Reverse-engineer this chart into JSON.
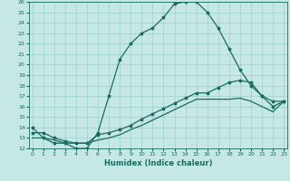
{
  "xlabel": "Humidex (Indice chaleur)",
  "xlim": [
    0,
    23
  ],
  "ylim": [
    12,
    26
  ],
  "yticks": [
    12,
    13,
    14,
    15,
    16,
    17,
    18,
    19,
    20,
    21,
    22,
    23,
    24,
    25,
    26
  ],
  "xticks": [
    0,
    1,
    2,
    3,
    4,
    5,
    6,
    7,
    8,
    9,
    10,
    11,
    12,
    13,
    14,
    15,
    16,
    17,
    18,
    19,
    20,
    21,
    22,
    23
  ],
  "bg_color": "#c5e8e5",
  "grid_color": "#9bcfcc",
  "line_color": "#1a6b60",
  "line1_y": [
    14.0,
    13.0,
    12.5,
    12.5,
    12.0,
    12.0,
    13.5,
    17.0,
    20.5,
    22.0,
    23.0,
    23.5,
    24.5,
    25.8,
    26.0,
    26.0,
    25.0,
    23.5,
    21.5,
    19.5,
    18.0,
    17.0,
    16.5,
    16.5
  ],
  "line2_y": [
    13.5,
    13.5,
    13.0,
    12.7,
    12.5,
    12.5,
    13.3,
    13.5,
    13.8,
    14.2,
    14.8,
    15.3,
    15.8,
    16.3,
    16.8,
    17.3,
    17.3,
    17.8,
    18.3,
    18.5,
    18.3,
    17.0,
    16.0,
    16.5
  ],
  "line3_y": [
    13.0,
    13.0,
    12.8,
    12.5,
    12.5,
    12.5,
    12.8,
    13.0,
    13.3,
    13.8,
    14.2,
    14.7,
    15.2,
    15.7,
    16.2,
    16.7,
    16.7,
    16.7,
    16.7,
    16.8,
    16.5,
    16.0,
    15.5,
    16.5
  ]
}
